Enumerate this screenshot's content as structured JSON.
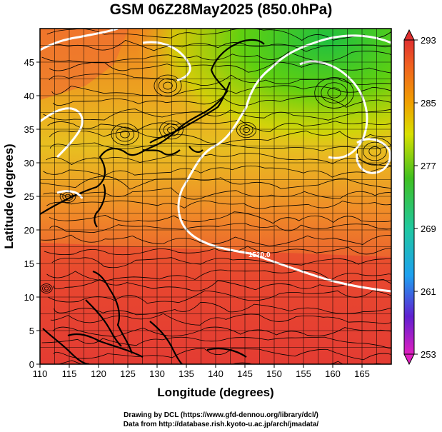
{
  "title": "GSM 06Z28May2025 (850.0hPa)",
  "x_axis": {
    "label": "Longitude (degrees)",
    "range": [
      110,
      170
    ],
    "ticks": [
      "110",
      "115",
      "120",
      "125",
      "130",
      "135",
      "140",
      "145",
      "150",
      "155",
      "160",
      "165"
    ]
  },
  "y_axis": {
    "label": "Latitude  (degrees)",
    "range": [
      0,
      50
    ],
    "ticks": [
      "0",
      "5",
      "10",
      "15",
      "20",
      "25",
      "30",
      "35",
      "40",
      "45"
    ]
  },
  "colorbar": {
    "ticks": [
      "253",
      "261",
      "269",
      "277",
      "285",
      "293"
    ],
    "range": [
      253,
      293
    ],
    "colors": [
      "#e020c0",
      "#4020d0",
      "#1ea0f0",
      "#20c8a0",
      "#40c020",
      "#d8e000",
      "#f0a000",
      "#f06020",
      "#e03030"
    ]
  },
  "contour_label": "1520.0",
  "credits": {
    "line1": "Drawing by DCL (https://www.gfd-dennou.org/library/dcl/)",
    "line2": "Data from http://database.rish.kyoto-u.ac.jp/arch/jmadata/"
  }
}
